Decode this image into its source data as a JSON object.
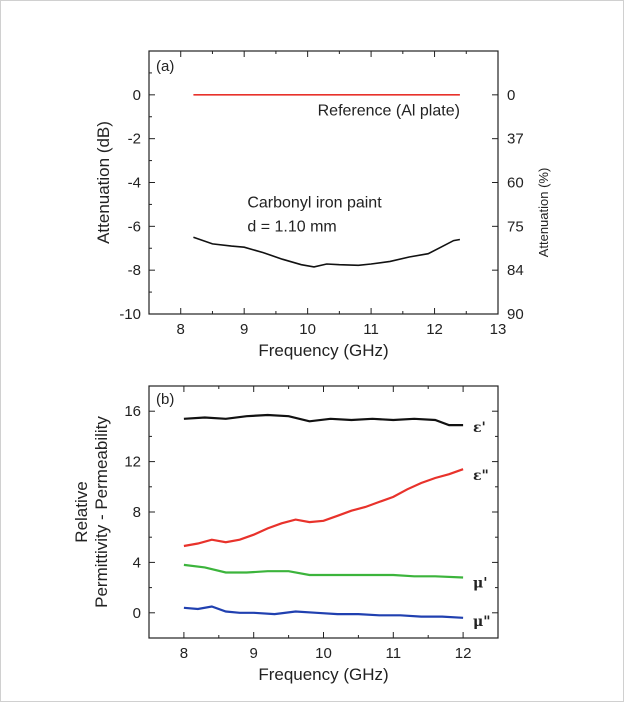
{
  "chart_data": [
    {
      "type": "line",
      "panel_label": "(a)",
      "xlabel": "Frequency (GHz)",
      "ylabel": "Attenuation (dB)",
      "y2label": "Attenuation (%)",
      "xlim": [
        7.5,
        13
      ],
      "ylim": [
        -10,
        2
      ],
      "xticks": [
        "8",
        "9",
        "10",
        "11",
        "12",
        "13"
      ],
      "yticks": [
        "-10",
        "-8",
        "-6",
        "-4",
        "-2",
        "0"
      ],
      "y2ticks": [
        {
          "label": "0",
          "db": 0
        },
        {
          "label": "37",
          "db": -2
        },
        {
          "label": "60",
          "db": -4
        },
        {
          "label": "75",
          "db": -6
        },
        {
          "label": "84",
          "db": -8
        },
        {
          "label": "90",
          "db": -10
        }
      ],
      "series": [
        {
          "name": "Reference (Al plate)",
          "color": "#e8322b",
          "x": [
            8.2,
            12.4
          ],
          "y": [
            0,
            0
          ]
        },
        {
          "name": "Carbonyl iron paint",
          "name2": "d = 1.10 mm",
          "color": "#111111",
          "x": [
            8.2,
            8.5,
            8.8,
            9.0,
            9.3,
            9.6,
            9.9,
            10.1,
            10.3,
            10.5,
            10.8,
            11.0,
            11.3,
            11.6,
            11.9,
            12.1,
            12.3,
            12.4
          ],
          "y": [
            -6.5,
            -6.8,
            -6.9,
            -6.95,
            -7.2,
            -7.5,
            -7.75,
            -7.85,
            -7.72,
            -7.75,
            -7.78,
            -7.72,
            -7.6,
            -7.4,
            -7.25,
            -6.95,
            -6.65,
            -6.6
          ]
        }
      ]
    },
    {
      "type": "line",
      "panel_label": "(b)",
      "xlabel": "Frequency (GHz)",
      "ylabel_line1": "Relative",
      "ylabel_line2": "Permittivity - Permeability",
      "xlim": [
        7.5,
        12.5
      ],
      "ylim": [
        -2,
        18
      ],
      "xticks": [
        "8",
        "9",
        "10",
        "11",
        "12"
      ],
      "yticks": [
        "0",
        "4",
        "8",
        "12",
        "16"
      ],
      "series": [
        {
          "name": "ε'",
          "color": "#111111",
          "x": [
            8.0,
            8.3,
            8.6,
            8.9,
            9.2,
            9.5,
            9.8,
            10.1,
            10.4,
            10.7,
            11.0,
            11.3,
            11.6,
            11.8,
            12.0
          ],
          "y": [
            15.4,
            15.5,
            15.4,
            15.6,
            15.7,
            15.6,
            15.2,
            15.4,
            15.3,
            15.4,
            15.3,
            15.4,
            15.3,
            14.9,
            14.9
          ]
        },
        {
          "name": "ε\"",
          "color": "#e8322b",
          "x": [
            8.0,
            8.2,
            8.4,
            8.6,
            8.8,
            9.0,
            9.2,
            9.4,
            9.6,
            9.8,
            10.0,
            10.2,
            10.4,
            10.6,
            10.8,
            11.0,
            11.2,
            11.4,
            11.6,
            11.8,
            12.0
          ],
          "y": [
            5.3,
            5.5,
            5.8,
            5.6,
            5.8,
            6.2,
            6.7,
            7.1,
            7.4,
            7.2,
            7.3,
            7.7,
            8.1,
            8.4,
            8.8,
            9.2,
            9.8,
            10.3,
            10.7,
            11.0,
            11.4
          ]
        },
        {
          "name": "μ'",
          "color": "#3cb43c",
          "x": [
            8.0,
            8.3,
            8.6,
            8.9,
            9.2,
            9.5,
            9.8,
            10.1,
            10.4,
            10.7,
            11.0,
            11.3,
            11.6,
            12.0
          ],
          "y": [
            3.8,
            3.6,
            3.2,
            3.2,
            3.3,
            3.3,
            3.0,
            3.0,
            3.0,
            3.0,
            3.0,
            2.9,
            2.9,
            2.8
          ]
        },
        {
          "name": "μ\"",
          "color": "#2040b0",
          "x": [
            8.0,
            8.2,
            8.4,
            8.6,
            8.8,
            9.0,
            9.3,
            9.6,
            9.9,
            10.2,
            10.5,
            10.8,
            11.1,
            11.4,
            11.7,
            12.0
          ],
          "y": [
            0.4,
            0.3,
            0.5,
            0.1,
            0.0,
            0.0,
            -0.1,
            0.1,
            0.0,
            -0.1,
            -0.1,
            -0.2,
            -0.2,
            -0.3,
            -0.3,
            -0.4
          ]
        }
      ]
    }
  ]
}
